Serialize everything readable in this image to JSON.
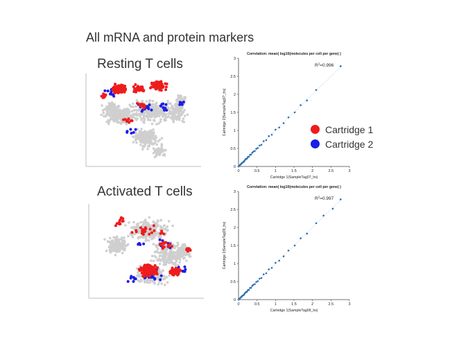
{
  "slide_title": "All mRNA and protein markers",
  "panels": [
    {
      "title": "Resting T cells"
    },
    {
      "title": "Activated T cells"
    }
  ],
  "legend": {
    "items": [
      {
        "label": "Cartridge 1",
        "color": "#ee1c1c"
      },
      {
        "label": "Cartridge 2",
        "color": "#1c1ce6"
      }
    ]
  },
  "colors": {
    "background_cells": "#cfcfcf",
    "scatter_points": "#2a6fb5"
  },
  "chart_data": [
    {
      "type": "scatter",
      "title": "Correlation: mean( log10(molecules per cell per gene) )",
      "xlabel": "Cartridge 1|SampleTag07_hs|",
      "ylabel": "Cartridge 2|SampleTag07_hs|",
      "annotation_prefix": "R",
      "annotation_sup": "2",
      "annotation_value": "=0.996",
      "xlim": [
        0,
        3
      ],
      "ylim": [
        0,
        3
      ],
      "xticks": [
        "0",
        "0.5",
        "1",
        "1.5",
        "2",
        "2.5",
        "3"
      ],
      "yticks": [
        "0",
        "0.5",
        "1",
        "1.5",
        "2",
        "2.5",
        "3"
      ],
      "x": [
        0.01,
        0.03,
        0.05,
        0.07,
        0.09,
        0.11,
        0.13,
        0.15,
        0.17,
        0.19,
        0.21,
        0.23,
        0.25,
        0.28,
        0.31,
        0.34,
        0.37,
        0.4,
        0.44,
        0.48,
        0.52,
        0.57,
        0.62,
        0.68,
        0.75,
        0.82,
        0.9,
        1.0,
        1.1,
        1.22,
        1.35,
        1.52,
        1.68,
        1.85,
        2.1,
        2.76
      ],
      "y": [
        0.01,
        0.03,
        0.05,
        0.07,
        0.09,
        0.11,
        0.12,
        0.14,
        0.17,
        0.2,
        0.21,
        0.22,
        0.26,
        0.27,
        0.32,
        0.33,
        0.38,
        0.41,
        0.43,
        0.49,
        0.51,
        0.58,
        0.6,
        0.7,
        0.73,
        0.84,
        0.88,
        1.02,
        1.08,
        1.2,
        1.36,
        1.5,
        1.7,
        1.83,
        2.12,
        2.78
      ]
    },
    {
      "type": "scatter",
      "title": "Correlation: mean( log10(molecules per cell per gene) )",
      "xlabel": "Cartridge 1|SampleTag09_hs|",
      "ylabel": "Cartridge 2|SampleTag09_hs|",
      "annotation_prefix": "R",
      "annotation_sup": "2",
      "annotation_value": "=0.997",
      "xlim": [
        0,
        3
      ],
      "ylim": [
        0,
        3
      ],
      "xticks": [
        "0",
        "0.5",
        "1",
        "1.5",
        "2",
        "2.5",
        "3"
      ],
      "yticks": [
        "0",
        "0.5",
        "1",
        "1.5",
        "2",
        "2.5",
        "3"
      ],
      "x": [
        0.01,
        0.03,
        0.05,
        0.07,
        0.09,
        0.11,
        0.13,
        0.15,
        0.17,
        0.19,
        0.21,
        0.23,
        0.25,
        0.28,
        0.31,
        0.34,
        0.37,
        0.4,
        0.44,
        0.48,
        0.52,
        0.57,
        0.62,
        0.68,
        0.75,
        0.82,
        0.9,
        1.0,
        1.1,
        1.22,
        1.35,
        1.52,
        1.68,
        1.85,
        2.1,
        2.3,
        2.55,
        2.76
      ],
      "y": [
        0.01,
        0.03,
        0.05,
        0.07,
        0.09,
        0.11,
        0.12,
        0.14,
        0.17,
        0.2,
        0.21,
        0.22,
        0.26,
        0.27,
        0.32,
        0.33,
        0.38,
        0.41,
        0.43,
        0.49,
        0.51,
        0.58,
        0.6,
        0.7,
        0.73,
        0.84,
        0.88,
        1.02,
        1.08,
        1.2,
        1.36,
        1.5,
        1.7,
        1.83,
        2.12,
        2.33,
        2.52,
        2.78
      ]
    }
  ]
}
